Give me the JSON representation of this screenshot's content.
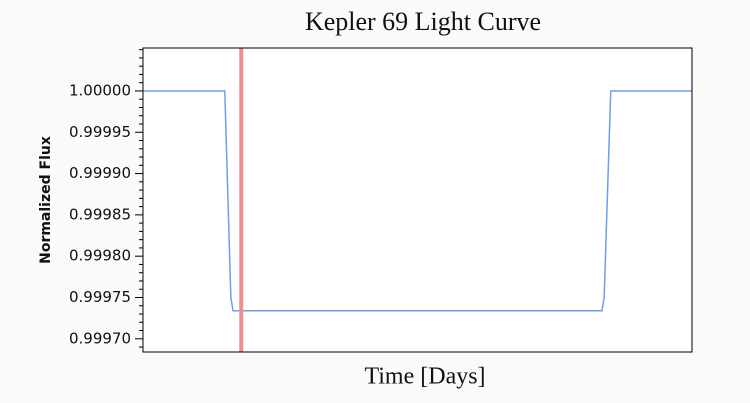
{
  "chart_data": {
    "type": "line",
    "title": "Kepler 69 Light Curve",
    "xlabel": "Time [Days]",
    "ylabel": "Normalized Flux",
    "x": [
      0,
      14.9,
      16.0,
      16.4,
      83.6,
      84.0,
      85.2,
      100
    ],
    "series": [
      {
        "color": "#6d9eeb",
        "values": [
          1.0,
          1.0,
          0.99975,
          0.999734,
          0.999734,
          0.99975,
          1.0,
          1.0
        ]
      }
    ],
    "marker_x": 17.9,
    "marker_color": "#f08f8f",
    "xlim": [
      0,
      100
    ],
    "ylim": [
      0.999684,
      1.000052
    ],
    "yticks": [
      {
        "value": 0.9997,
        "label": "0.99970"
      },
      {
        "value": 0.99975,
        "label": "0.99975"
      },
      {
        "value": 0.9998,
        "label": "0.99980"
      },
      {
        "value": 0.99985,
        "label": "0.99985"
      },
      {
        "value": 0.9999,
        "label": "0.99990"
      },
      {
        "value": 0.99995,
        "label": "0.99995"
      },
      {
        "value": 1.0,
        "label": "1.00000"
      }
    ],
    "yminorticks": [
      0.99969,
      0.99971,
      0.99972,
      0.99973,
      0.99974,
      0.99976,
      0.99977,
      0.99978,
      0.99979,
      0.99981,
      0.99982,
      0.99983,
      0.99984,
      0.99986,
      0.99987,
      0.99988,
      0.99989,
      0.99991,
      0.99992,
      0.99993,
      0.99994,
      0.99996,
      0.99997,
      0.99998,
      0.99999,
      1.00001,
      1.00002,
      1.00003,
      1.00004,
      1.00005
    ]
  }
}
